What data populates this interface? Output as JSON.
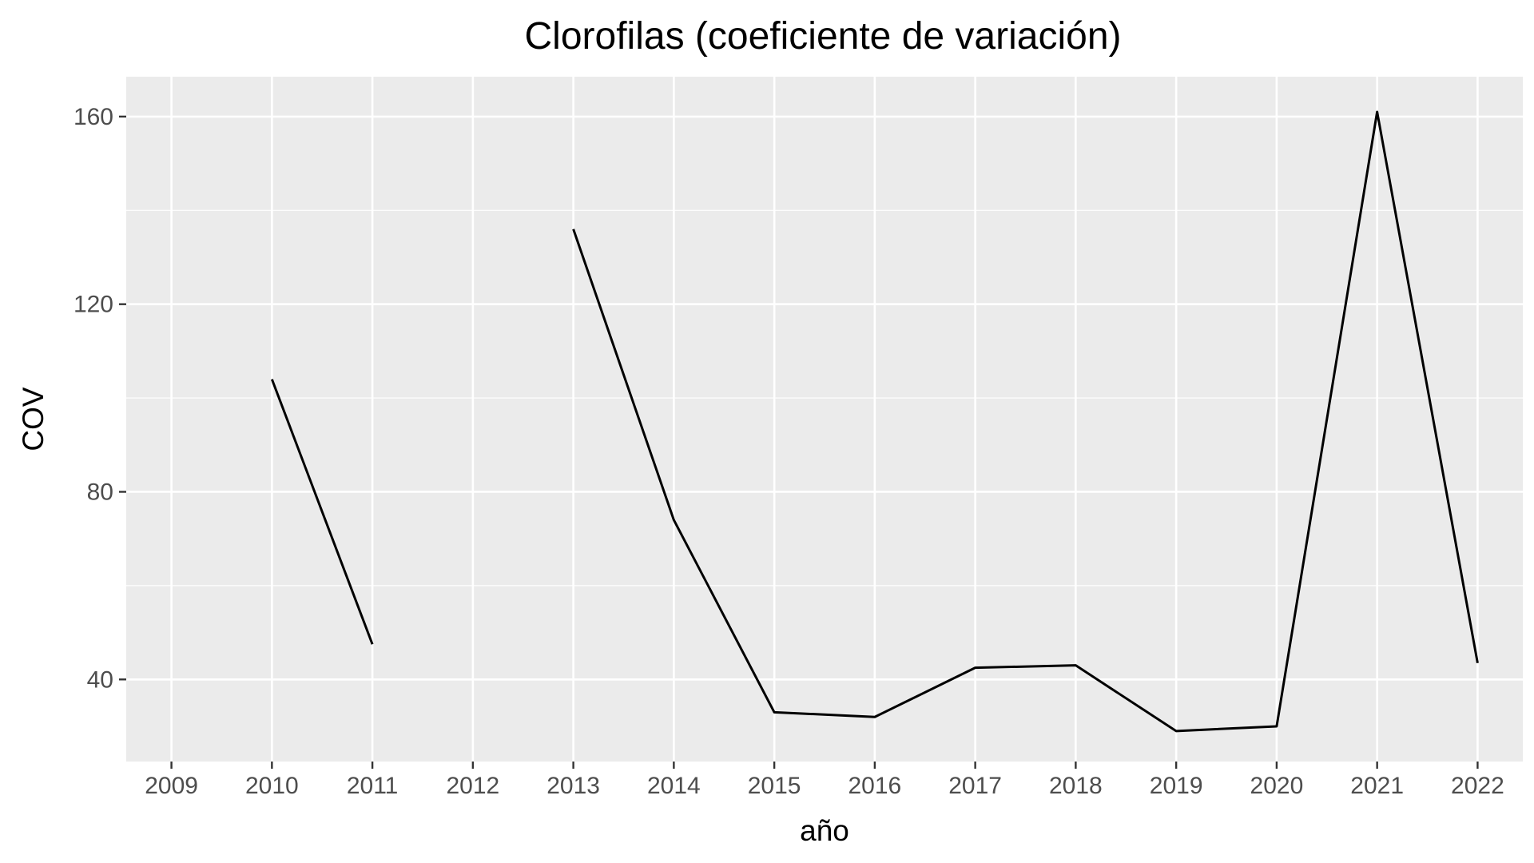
{
  "chart_data": {
    "type": "line",
    "title": "Clorofilas (coeficiente de variación)",
    "xlabel": "año",
    "ylabel": "COV",
    "x": [
      2009,
      2010,
      2011,
      2012,
      2013,
      2014,
      2015,
      2016,
      2017,
      2018,
      2019,
      2020,
      2021,
      2022
    ],
    "x_tick_labels": [
      "2009",
      "2010",
      "2011",
      "2012",
      "2013",
      "2014",
      "2015",
      "2016",
      "2017",
      "2018",
      "2019",
      "2020",
      "2021",
      "2022"
    ],
    "y_ticks": [
      40,
      80,
      120,
      160
    ],
    "y_tick_labels": [
      "40",
      "80",
      "120",
      "160"
    ],
    "series": [
      {
        "values": [
          null,
          104,
          47.5,
          null,
          136,
          74,
          33,
          32,
          42.5,
          43,
          29,
          30,
          161,
          43.5
        ]
      }
    ],
    "xlim": [
      2008.55,
      2022.45
    ],
    "ylim": [
      22.5,
      168.5
    ],
    "grid": true,
    "legend": "none",
    "colors": {
      "panel_background": "#ebebeb",
      "grid": "#ffffff",
      "line": "#000000",
      "tick_text": "#4d4d4d",
      "tick_mark": "#333333"
    }
  }
}
